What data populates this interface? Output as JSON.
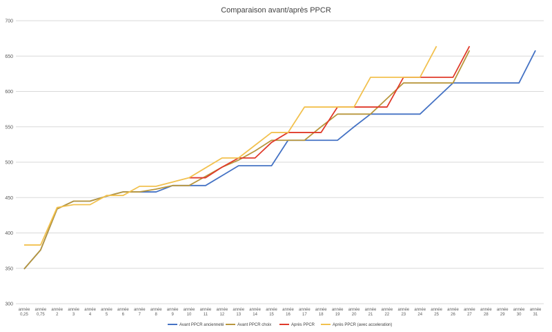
{
  "chart_data": {
    "type": "line",
    "title": "Comparaison avant/après PPCR",
    "xlabel": "",
    "ylabel": "",
    "ylim": [
      300,
      700
    ],
    "yticks": [
      300,
      350,
      400,
      450,
      500,
      550,
      600,
      650,
      700
    ],
    "grid": "horizontal",
    "legend_position": "bottom",
    "categories": [
      "année 0,25",
      "année 0,75",
      "année 2",
      "année 3",
      "année 4",
      "année 5",
      "année 6",
      "année 7",
      "année 8",
      "année 9",
      "année 10",
      "année 11",
      "année 12",
      "année 13",
      "année 14",
      "année 15",
      "année 16",
      "année 17",
      "année 18",
      "année 19",
      "année 20",
      "année 21",
      "année 22",
      "année 23",
      "année 24",
      "année 25",
      "année 26",
      "année 27",
      "année 28",
      "année 29",
      "année 30",
      "année 31"
    ],
    "series": [
      {
        "name": "Avant PPCR ancienneté",
        "color": "#4472c4",
        "values": [
          349,
          376,
          434,
          445,
          445,
          452,
          458,
          458,
          458,
          467,
          467,
          467,
          481,
          495,
          495,
          495,
          531,
          531,
          531,
          531,
          550,
          568,
          568,
          568,
          568,
          590,
          612,
          612,
          612,
          612,
          612,
          658
        ]
      },
      {
        "name": "Avant PPCR choix",
        "color": "#b8963c",
        "values": [
          349,
          376,
          434,
          445,
          445,
          452,
          458,
          458,
          462,
          467,
          467,
          480,
          493,
          503,
          516,
          531,
          531,
          531,
          550,
          568,
          568,
          568,
          590,
          612,
          612,
          612,
          612,
          658,
          null,
          null,
          null,
          null
        ]
      },
      {
        "name": "Après PPCR",
        "color": "#e03a2a",
        "values": [
          null,
          null,
          null,
          null,
          null,
          null,
          null,
          null,
          null,
          null,
          478,
          478,
          493,
          506,
          506,
          528,
          542,
          542,
          542,
          578,
          578,
          578,
          578,
          620,
          620,
          620,
          620,
          664,
          null,
          null,
          null,
          null
        ]
      },
      {
        "name": "Après PPCR (avec acceleration)",
        "color": "#f2c14e",
        "values": [
          383,
          383,
          436,
          440,
          440,
          453,
          453,
          466,
          466,
          472,
          478,
          492,
          506,
          506,
          524,
          542,
          542,
          578,
          578,
          578,
          578,
          620,
          620,
          620,
          620,
          664,
          null,
          null,
          null,
          null,
          null,
          null
        ]
      }
    ]
  }
}
